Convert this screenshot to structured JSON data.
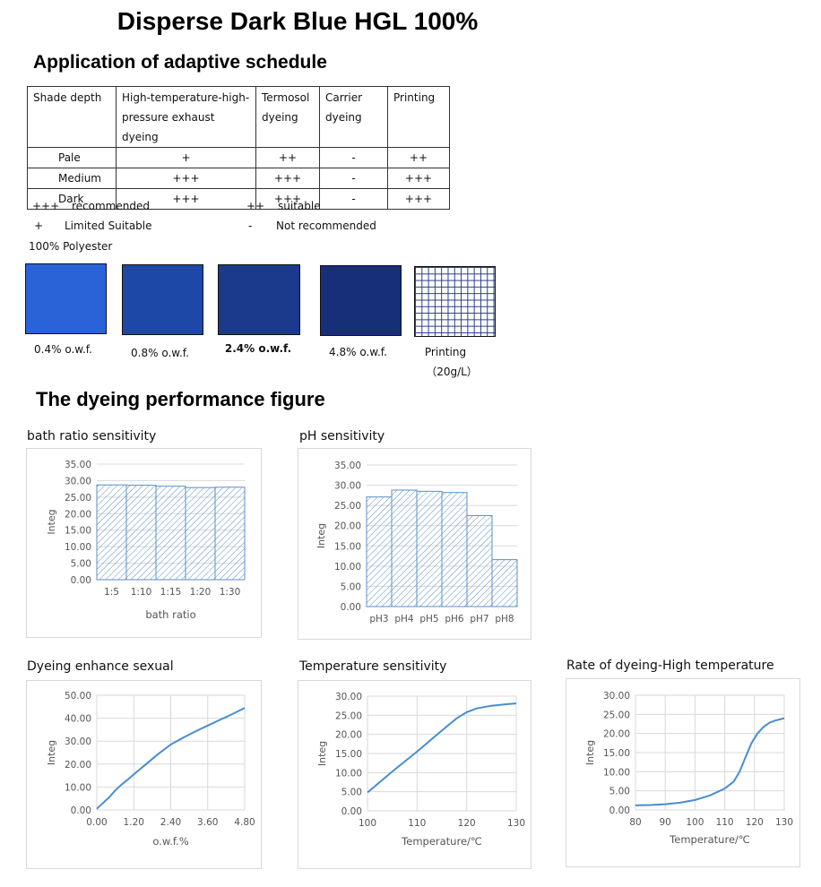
{
  "title": "Disperse Dark Blue HGL 100%",
  "schedule": {
    "heading": "Application of adaptive schedule",
    "headers": [
      "Shade depth",
      "High-temperature-high-pressure exhaust dyeing",
      "Termosol dyeing",
      "Carrier dyeing",
      "Printing"
    ],
    "rows": [
      [
        "Pale",
        "+",
        "++",
        "-",
        "++"
      ],
      [
        "Medium",
        "+++",
        "+++",
        "-",
        "+++"
      ],
      [
        "Dark",
        "+++",
        "+++",
        "-",
        "+++"
      ]
    ],
    "legend": [
      {
        "symbol": "+++",
        "text": "recommended"
      },
      {
        "symbol": "++",
        "text": "suitable"
      },
      {
        "symbol": "+",
        "text": "Limited Suitable"
      },
      {
        "symbol": "-",
        "text": "Not recommended"
      }
    ]
  },
  "substrate": "100%  Polyester",
  "swatches": [
    {
      "label": "0.4% o.w.f.",
      "color": "#2a62d8"
    },
    {
      "label": "0.8% o.w.f.",
      "color": "#1d48a7"
    },
    {
      "label": "2.4% o.w.f.",
      "color": "#1b3a8c"
    },
    {
      "label": "4.8% o.w.f.",
      "color": "#172f77"
    },
    {
      "label": "Printing",
      "label2": "（20g/L）",
      "color": "grid"
    }
  ],
  "performance_heading": "The dyeing performance figure",
  "chart_data": [
    {
      "type": "bar",
      "title": "bath ratio sensitivity",
      "xlabel": "bath ratio",
      "ylabel": "Integ",
      "categories": [
        "1:5",
        "1:10",
        "1:15",
        "1:20",
        "1:30"
      ],
      "values": [
        28.7,
        28.6,
        28.3,
        27.9,
        28.0
      ],
      "ylim": [
        0,
        35
      ],
      "yticks": [
        "0.00",
        "5.00",
        "10.00",
        "15.00",
        "20.00",
        "25.00",
        "30.00",
        "35.00"
      ],
      "color": "#5b8fc7"
    },
    {
      "type": "bar",
      "title": "pH sensitivity",
      "xlabel": "",
      "ylabel": "Integ",
      "categories": [
        "pH3",
        "pH4",
        "pH5",
        "pH6",
        "pH7",
        "pH8"
      ],
      "values": [
        27.1,
        28.8,
        28.5,
        28.2,
        22.5,
        11.6
      ],
      "ylim": [
        0,
        35
      ],
      "yticks": [
        "0.00",
        "5.00",
        "10.00",
        "15.00",
        "20.00",
        "25.00",
        "30.00",
        "35.00"
      ],
      "color": "#5b8fc7"
    },
    {
      "type": "line",
      "title": "Dyeing enhance sexual",
      "xlabel": "o.w.f.%",
      "ylabel": "Integ",
      "x": [
        0,
        0.2,
        0.4,
        0.6,
        0.8,
        1.0,
        1.2,
        1.6,
        2.0,
        2.4,
        2.8,
        3.2,
        3.6,
        4.0,
        4.4,
        4.8
      ],
      "y": [
        0.5,
        3,
        5.5,
        8.5,
        11,
        13.2,
        15.5,
        20,
        24.5,
        28.5,
        31.5,
        34.2,
        36.8,
        39.3,
        41.8,
        44.5
      ],
      "xlim": [
        0,
        4.8
      ],
      "ylim": [
        0,
        50
      ],
      "xticks": [
        "0.00",
        "1.20",
        "2.40",
        "3.60",
        "4.80"
      ],
      "yticks": [
        "0.00",
        "10.00",
        "20.00",
        "30.00",
        "40.00",
        "50.00"
      ],
      "color": "#4a8ccf"
    },
    {
      "type": "line",
      "title": "Temperature sensitivity",
      "xlabel": "Temperature/℃",
      "ylabel": "Integ",
      "x": [
        100,
        105,
        110,
        115,
        118,
        120,
        122,
        125,
        128,
        130
      ],
      "y": [
        4.8,
        10.3,
        15.5,
        21.0,
        24.2,
        25.8,
        26.8,
        27.5,
        27.9,
        28.1
      ],
      "xlim": [
        100,
        130
      ],
      "ylim": [
        0,
        30
      ],
      "xticks": [
        "100",
        "110",
        "120",
        "130"
      ],
      "yticks": [
        "0.00",
        "5.00",
        "10.00",
        "15.00",
        "20.00",
        "25.00",
        "30.00"
      ],
      "color": "#4a8ccf"
    },
    {
      "type": "line",
      "title": "Rate of dyeing-High temperature",
      "xlabel": "Temperature/℃",
      "ylabel": "Integ",
      "x": [
        80,
        85,
        90,
        95,
        100,
        105,
        110,
        113,
        115,
        117,
        119,
        121,
        123,
        125,
        127,
        130
      ],
      "y": [
        1.2,
        1.3,
        1.5,
        1.9,
        2.6,
        3.8,
        5.6,
        7.4,
        10.0,
        13.8,
        17.5,
        20.0,
        21.7,
        22.8,
        23.4,
        24.0
      ],
      "xlim": [
        80,
        130
      ],
      "ylim": [
        0,
        30
      ],
      "xticks": [
        "80",
        "90",
        "100",
        "110",
        "120",
        "130"
      ],
      "yticks": [
        "0.00",
        "5.00",
        "10.00",
        "15.00",
        "20.00",
        "25.00",
        "30.00"
      ],
      "color": "#4a8ccf"
    }
  ]
}
